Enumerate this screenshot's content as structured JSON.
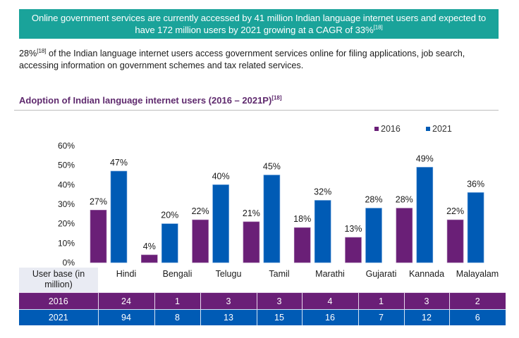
{
  "banner": {
    "line1": "Online government services are currently accessed by 41 million Indian language internet users and expected to",
    "line2": "have 172 million users by 2021 growing at a CAGR of 33%",
    "ref": "[18]"
  },
  "intro": {
    "lead": "28%",
    "ref": "[18]",
    "text": " of the Indian language internet users access government services online for filing applications, job search, accessing information on government schemes and tax related services."
  },
  "colors": {
    "banner": "#1aa39a",
    "series_2016": "#6a1f77",
    "series_2021": "#005bb5",
    "title": "#5f2a6e"
  },
  "chart_data": {
    "type": "bar",
    "title": "Adoption of Indian language internet users (2016 – 2021P)",
    "title_ref": "[18]",
    "categories": [
      "Hindi",
      "Bengali",
      "Telugu",
      "Tamil",
      "Marathi",
      "Gujarati",
      "Kannada",
      "Malayalam"
    ],
    "series": [
      {
        "name": "2016",
        "values": [
          27,
          4,
          22,
          21,
          18,
          13,
          28,
          22
        ]
      },
      {
        "name": "2021",
        "values": [
          47,
          20,
          40,
          45,
          32,
          28,
          49,
          36
        ]
      }
    ],
    "value_suffix": "%",
    "ylim": [
      0,
      60
    ],
    "yticks": [
      "0%",
      "10%",
      "20%",
      "30%",
      "40%",
      "50%",
      "60%"
    ],
    "grid": false,
    "legend": "top-right",
    "xlabel": "",
    "ylabel": ""
  },
  "table": {
    "header_label": "User base (in million)",
    "header_label_line1": "User base (in",
    "header_label_line2": "million)",
    "rows": [
      {
        "label": "2016",
        "values": [
          "24",
          "1",
          "3",
          "3",
          "4",
          "1",
          "3",
          "2"
        ]
      },
      {
        "label": "2021",
        "values": [
          "94",
          "8",
          "13",
          "15",
          "16",
          "7",
          "12",
          "6"
        ]
      }
    ]
  }
}
